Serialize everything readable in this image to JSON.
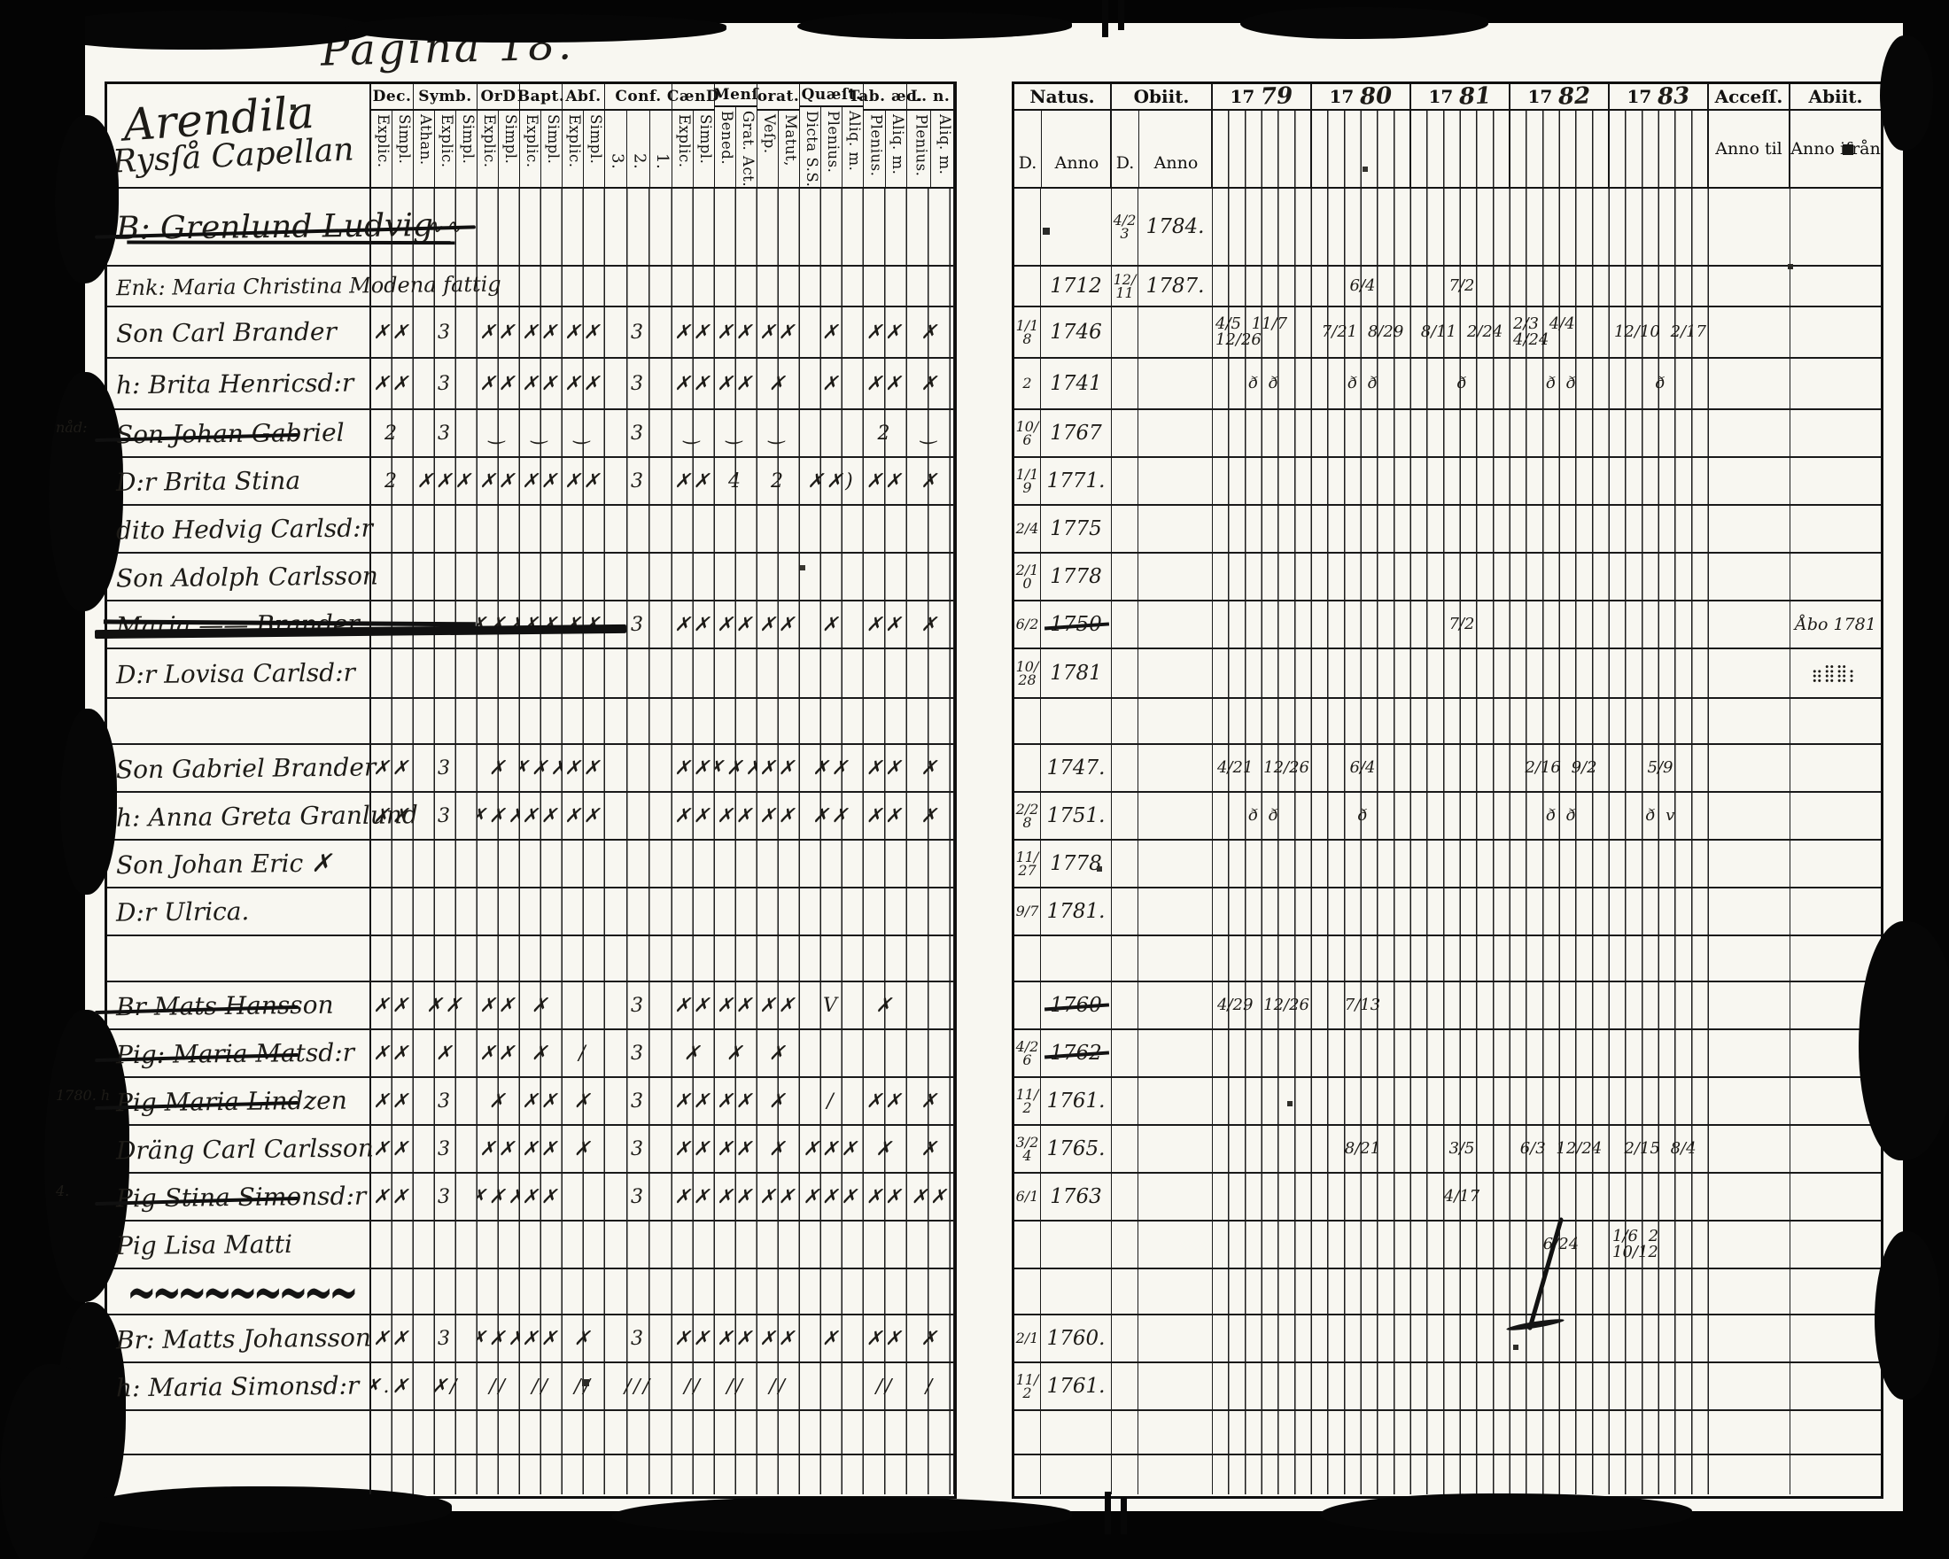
{
  "page_title": "Pagina 18.",
  "left_page": {
    "area_heading": {
      "line1": "Arendila",
      "line2": "Rysſå Capellan"
    },
    "columns": [
      {
        "label": "Dec.",
        "subs": [
          "Explic.",
          "Simpl."
        ]
      },
      {
        "label": "Symb.",
        "subs": [
          "Athan.",
          "Explic.",
          "Simpl."
        ]
      },
      {
        "label": "OrD",
        "subs": [
          "Explic.",
          "Simpl."
        ]
      },
      {
        "label": "Bapt.",
        "subs": [
          "Explic.",
          "Simpl."
        ]
      },
      {
        "label": "Abſ.",
        "subs": [
          "Explic.",
          "Simpl."
        ]
      },
      {
        "label": "Conf.",
        "subs": [
          "3.",
          "2.",
          "1."
        ]
      },
      {
        "label": "CænD",
        "subs": [
          "Explic.",
          "Simpl."
        ]
      },
      {
        "label": "Menſ",
        "subs": [
          "Bened.",
          "Grat. Act."
        ]
      },
      {
        "label": "orat.",
        "subs": [
          "Veſp.",
          "Matut,"
        ]
      },
      {
        "label": "Quæſt.",
        "subs": [
          "Dicta S.S.",
          "Plenius.",
          "Aliq. m."
        ]
      },
      {
        "label": "Tab. æc.",
        "subs": [
          "Plenius.",
          "Aliq. m."
        ]
      },
      {
        "label": "L. n.",
        "subs": [
          "Plenius.",
          "Aliq. m."
        ]
      }
    ],
    "rows": [
      {
        "name": "B: Grenlund Ludvig",
        "struck": "double",
        "marks": [
          "",
          "∿∿",
          "",
          "",
          "",
          "",
          "",
          "",
          "",
          "",
          "",
          ""
        ]
      },
      {
        "name": "Enk: Maria Christina Modena fattig",
        "small": true
      },
      {
        "name": "Son Carl Brander",
        "marks": [
          "✗✗",
          "3",
          "✗✗",
          "✗✗",
          "✗✗",
          "3",
          "✗✗",
          "✗✗",
          "✗✗",
          "✗",
          "✗✗",
          "✗"
        ]
      },
      {
        "name": "h: Brita Henricsd:r",
        "marks": [
          "✗✗",
          "3",
          "✗✗",
          "✗✗",
          "✗✗",
          "3",
          "✗✗",
          "✗✗",
          "✗",
          "✗",
          "✗✗",
          "✗"
        ]
      },
      {
        "name": "Son Johan Gabriel",
        "struck": true,
        "margin": "nåd:",
        "marks": [
          "2",
          "3",
          "‿",
          "‿",
          "‿",
          "3",
          "‿",
          "‿",
          "‿",
          "",
          "2",
          "‿"
        ]
      },
      {
        "name": "D:r Brita Stina",
        "marks": [
          "2",
          "✗✗✗",
          "✗✗",
          "✗✗",
          "✗✗",
          "3",
          "✗✗",
          "4",
          "2",
          "✗✗)",
          "✗✗",
          "✗"
        ]
      },
      {
        "name": "dito Hedvig Carlsd:r"
      },
      {
        "name": "Son Adolph Carlsson"
      },
      {
        "name": "Maria —— Brander",
        "struck": "heavy",
        "marks": [
          "",
          "",
          "✗✗✗",
          "✗✗",
          "✗✗",
          "3",
          "✗✗",
          "✗✗",
          "✗✗",
          "✗",
          "✗✗",
          "✗"
        ]
      },
      {
        "name": "D:r Lovisa Carlsd:r"
      },
      {
        "name": ""
      },
      {
        "name": "Son Gabriel Brander",
        "marks": [
          "✗✗",
          "3",
          "✗",
          "✗✗✗",
          "✗✗",
          "",
          "✗✗",
          "✗✗✗",
          "✗✗",
          "✗✗",
          "✗✗",
          "✗"
        ]
      },
      {
        "name": "h: Anna Greta Granlund",
        "marks": [
          "✗✗",
          "3",
          "✗✗✗",
          "✗✗",
          "✗✗",
          "",
          "✗✗",
          "✗✗",
          "✗✗",
          "✗✗",
          "✗✗",
          "✗"
        ]
      },
      {
        "name": "Son Johan Eric ✗"
      },
      {
        "name": "D:r Ulrica."
      },
      {
        "name": ""
      },
      {
        "name": "Br Mats Hansson",
        "struck": true,
        "marks": [
          "✗✗",
          "✗✗",
          "✗✗",
          "✗",
          "",
          "3",
          "✗✗",
          "✗✗",
          "✗✗",
          "V",
          "✗",
          ""
        ]
      },
      {
        "name": "Pig: Maria Matsd:r",
        "struck": true,
        "marks": [
          "✗✗",
          "✗",
          "✗✗",
          "✗",
          "/",
          "3",
          "✗",
          "✗",
          "✗",
          "",
          "",
          ""
        ]
      },
      {
        "name": "Pig Maria Lindzen",
        "struck": true,
        "margin": "1780. h",
        "marks": [
          "✗✗",
          "3",
          "✗",
          "✗✗",
          "✗",
          "3",
          "✗✗",
          "✗✗",
          "✗",
          "/",
          "✗✗",
          "✗"
        ]
      },
      {
        "name": "Dräng Carl Carlsson",
        "marks": [
          "✗✗",
          "3",
          "✗✗",
          "✗✗",
          "✗",
          "3",
          "✗✗",
          "✗✗",
          "✗",
          "✗✗✗",
          "✗",
          "✗"
        ]
      },
      {
        "name": "Pig Stina Simonsd:r",
        "struck": true,
        "margin": "4.",
        "marks": [
          "✗✗",
          "3",
          "✗✗✗",
          "✗✗",
          "",
          "3",
          "✗✗",
          "✗✗",
          "✗✗",
          "✗✗✗",
          "✗✗",
          "✗✗"
        ]
      },
      {
        "name": "Pig Lisa Matti"
      },
      {
        "name": "",
        "squiggle": "~~~~~~~~~"
      },
      {
        "name": "Br: Matts Johansson",
        "marks": [
          "✗✗",
          "3",
          "✗✗✗",
          "✗✗",
          "✗",
          "3",
          "✗✗",
          "✗✗",
          "✗✗",
          "✗",
          "✗✗",
          "✗"
        ]
      },
      {
        "name": "h: Maria Simonsd:r",
        "marks": [
          "✗.✗.",
          "✗∕",
          "∕∕",
          "∕∕",
          "∕∕",
          "∕∕∕",
          "∕∕",
          "∕∕",
          "∕∕",
          "",
          "∕∕",
          "∕"
        ]
      },
      {
        "name": ""
      },
      {
        "name": ""
      }
    ]
  },
  "right_page": {
    "natus_label": "Natus.",
    "obiit_label": "Obiit.",
    "d_label": "D.",
    "anno_label": "Anno",
    "years": [
      {
        "printed": "17",
        "written": "79"
      },
      {
        "printed": "17",
        "written": "80"
      },
      {
        "printed": "17",
        "written": "81"
      },
      {
        "printed": "17",
        "written": "82"
      },
      {
        "printed": "17",
        "written": "83"
      }
    ],
    "accessit": {
      "label": "Acceſſ.",
      "sub": "Anno til"
    },
    "abiit": {
      "label": "Abiit.",
      "sub": "Anno ifrån"
    },
    "rows": [
      {
        "od": "4/23",
        "oa": "1784."
      },
      {
        "na": "1712",
        "od": "12/11",
        "oa": "1787.",
        "y80": "6/4",
        "y81": "7/2"
      },
      {
        "nd": "1/18",
        "na": "1746",
        "y79": "4/5 11/7 12/26",
        "y80": "7/21 8/29",
        "y81": "8/11 2/24",
        "y82": "2/3 4/4 4/24",
        "y83": "12/10 2/17"
      },
      {
        "nd": "2",
        "na": "1741",
        "y79": "ð ð",
        "y80": "ð ð",
        "y81": "ð",
        "y82": "ð ð",
        "y83": "ð"
      },
      {
        "nd": "10/6",
        "na": "1767"
      },
      {
        "nd": "1/19",
        "na": "1771."
      },
      {
        "nd": "2/4",
        "na": "1775"
      },
      {
        "nd": "2/10",
        "na": "1778"
      },
      {
        "nd": "6/2",
        "na": "1750",
        "na_struck": true,
        "y81": "7/2",
        "ab": "Åbo 1781"
      },
      {
        "nd": "10/28",
        "na": "1781",
        "ab": "⣶⣿⣿⡆"
      },
      {},
      {
        "na": "1747.",
        "y79": "4/21 12/26",
        "y80": "6/4",
        "y82": "2/16 9/2",
        "y83": "5/9"
      },
      {
        "nd": "2/28",
        "na": "1751.",
        "y79": "ð ð",
        "y80": "ð",
        "y82": "ð ð",
        "y83": "ð v"
      },
      {
        "nd": "11/27",
        "na": "1778"
      },
      {
        "nd": "9/7",
        "na": "1781."
      },
      {},
      {
        "na": "1760",
        "na_struck": true,
        "y79": "4/29 12/26",
        "y80": "7/13"
      },
      {
        "nd": "4/26",
        "na": "1762",
        "na_struck": true
      },
      {
        "nd": "11/2",
        "na": "1761."
      },
      {
        "nd": "3/24",
        "na": "1765.",
        "y80": "8/21",
        "y81": "3/5",
        "y82": "6/3 12/24",
        "y83": "2/15 8/4"
      },
      {
        "nd": "6/1",
        "na": "1763",
        "y81": "4/17"
      },
      {
        "y82": "6/24",
        "y83": "1/6 2 10/12"
      },
      {},
      {
        "nd": "2/1",
        "na": "1760."
      },
      {
        "nd": "11/2",
        "na": "1761."
      },
      {},
      {}
    ]
  }
}
